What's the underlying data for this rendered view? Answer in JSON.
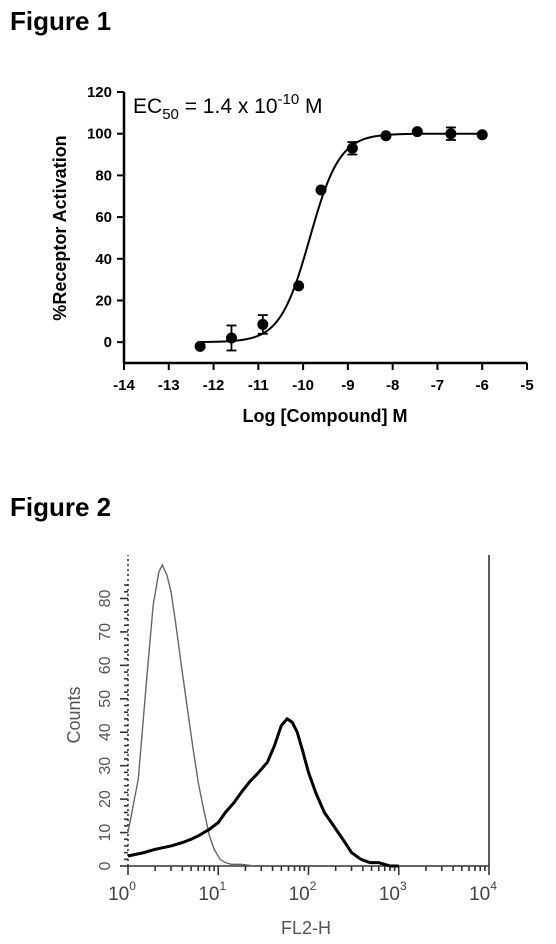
{
  "figure1": {
    "heading": "Figure 1",
    "chart_data": {
      "type": "scatter",
      "annotation": {
        "prefix": "EC",
        "subscript": "50",
        "middle": " = 1.4 x 10",
        "superscript": "-10",
        "suffix": " M"
      },
      "xlabel": "Log [Compound] M",
      "ylabel": "%Receptor Activation",
      "xlim": [
        -14,
        -5
      ],
      "ylim": [
        -10,
        120
      ],
      "xticks": [
        -14,
        -13,
        -12,
        -11,
        -10,
        -9,
        -8,
        -7,
        -6,
        -5
      ],
      "yticks": [
        0,
        20,
        40,
        60,
        80,
        100,
        120
      ],
      "points": [
        {
          "x": -12.3,
          "y": -2,
          "err": 0
        },
        {
          "x": -11.6,
          "y": 2,
          "err": 6
        },
        {
          "x": -10.9,
          "y": 8.5,
          "err": 4.5
        },
        {
          "x": -10.1,
          "y": 27,
          "err": 0
        },
        {
          "x": -9.6,
          "y": 73,
          "err": 0
        },
        {
          "x": -8.9,
          "y": 93,
          "err": 3
        },
        {
          "x": -8.15,
          "y": 99,
          "err": 0
        },
        {
          "x": -7.45,
          "y": 101,
          "err": 0
        },
        {
          "x": -6.7,
          "y": 100,
          "err": 3
        },
        {
          "x": -6.0,
          "y": 99.5,
          "err": 0
        }
      ],
      "fit": {
        "bottom": 0,
        "top": 100,
        "log_ec50": -9.85,
        "hill": 1.3,
        "x_range": [
          -12.3,
          -6.0
        ]
      }
    }
  },
  "figure2": {
    "heading": "Figure 2",
    "chart_data": {
      "type": "line",
      "xlabel": "FL2-H",
      "ylabel": "Counts",
      "x_scale": "log",
      "xlim": [
        1,
        10000
      ],
      "ylim": [
        0,
        90
      ],
      "yticks": [
        0,
        10,
        20,
        30,
        40,
        50,
        60,
        70,
        80
      ],
      "xtick_labels": [
        {
          "base": "10",
          "exp": "0"
        },
        {
          "base": "10",
          "exp": "1"
        },
        {
          "base": "10",
          "exp": "2"
        },
        {
          "base": "10",
          "exp": "3"
        },
        {
          "base": "10",
          "exp": "4"
        }
      ],
      "series": [
        {
          "style": "thin-gray",
          "x": [
            1.0,
            1.3,
            1.6,
            1.9,
            2.2,
            2.4,
            2.7,
            3.0,
            3.4,
            3.9,
            4.5,
            5.2,
            6.0,
            7.0,
            8.0,
            9.0,
            10.5,
            12,
            14,
            18,
            25
          ],
          "y": [
            10,
            26,
            55,
            78,
            88,
            90,
            87,
            82,
            72,
            60,
            48,
            36,
            25,
            16,
            9,
            5,
            2,
            1,
            0.5,
            0.5,
            0
          ]
        },
        {
          "style": "thick-black",
          "x": [
            1.0,
            1.5,
            2,
            3,
            4,
            5,
            6,
            8,
            10,
            12,
            15,
            18,
            22,
            28,
            35,
            42,
            50,
            58,
            66,
            75,
            85,
            100,
            120,
            150,
            190,
            240,
            300,
            380,
            480,
            600,
            800,
            1000
          ],
          "y": [
            3,
            4,
            5,
            6,
            7,
            8,
            9,
            11,
            13,
            16,
            19,
            22,
            25,
            28,
            31,
            36,
            42,
            44,
            43,
            40,
            35,
            28,
            22,
            16,
            12,
            8,
            4,
            2,
            1,
            1,
            0,
            0
          ]
        }
      ]
    }
  }
}
